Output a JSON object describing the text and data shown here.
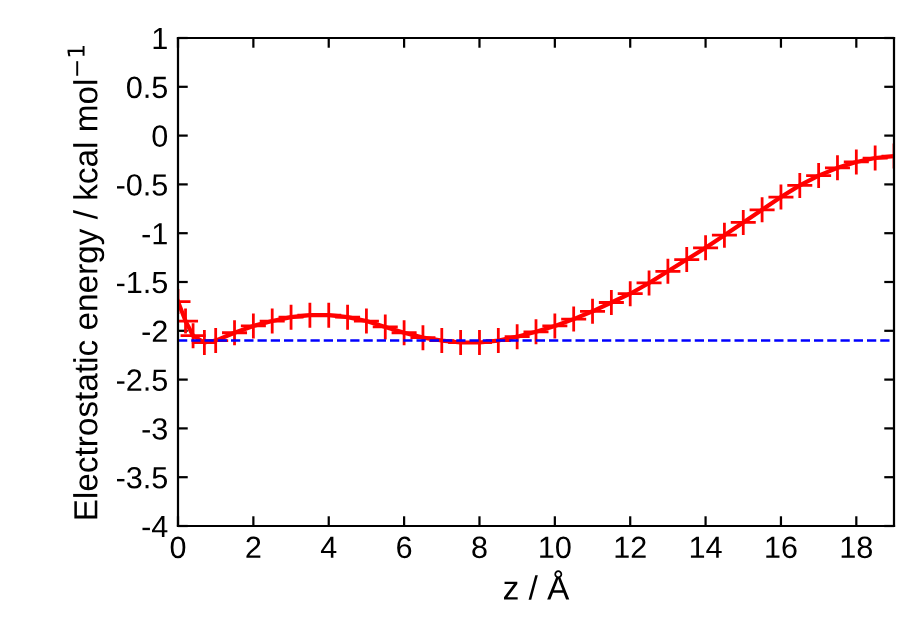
{
  "chart_data": {
    "type": "line",
    "xlabel": "z / Å",
    "ylabel": "Electrostatic energy / kcal mol$^{−1}$",
    "series": [
      {
        "color": "#ff0000",
        "x": [
          0,
          0.2,
          0.4,
          0.7,
          1.0,
          1.5,
          2.0,
          2.5,
          3.0,
          3.5,
          4.0,
          4.5,
          5.0,
          5.5,
          6.0,
          6.5,
          7.0,
          7.5,
          8.0,
          8.5,
          9.0,
          9.5,
          10,
          10.5,
          11,
          11.5,
          12,
          12.5,
          13,
          13.5,
          14,
          14.5,
          15,
          15.5,
          16,
          16.5,
          17,
          17.5,
          18,
          18.5,
          19
        ],
        "values": [
          -1.7,
          -1.9,
          -2.05,
          -2.12,
          -2.1,
          -2.02,
          -1.95,
          -1.9,
          -1.86,
          -1.84,
          -1.84,
          -1.86,
          -1.9,
          -1.96,
          -2.02,
          -2.07,
          -2.1,
          -2.12,
          -2.12,
          -2.1,
          -2.06,
          -2.01,
          -1.95,
          -1.88,
          -1.8,
          -1.71,
          -1.62,
          -1.51,
          -1.39,
          -1.27,
          -1.15,
          -1.02,
          -0.89,
          -0.76,
          -0.63,
          -0.51,
          -0.41,
          -0.33,
          -0.27,
          -0.23,
          -0.21
        ]
      }
    ],
    "ref_lines": [
      {
        "axis": "y",
        "value": -2.1,
        "color": "#0000ff",
        "line_style": "dashed"
      }
    ],
    "marker": "cross",
    "line_style": "solid",
    "grid": false,
    "legend": false,
    "xlim": [
      0,
      19
    ],
    "xticks": [
      0,
      2,
      4,
      6,
      8,
      10,
      12,
      14,
      16,
      18
    ],
    "ylim": [
      -4,
      1
    ],
    "yticks": [
      -4,
      -3.5,
      -3,
      -2.5,
      -2,
      -1.5,
      -1,
      -0.5,
      0,
      0.5,
      1
    ]
  }
}
